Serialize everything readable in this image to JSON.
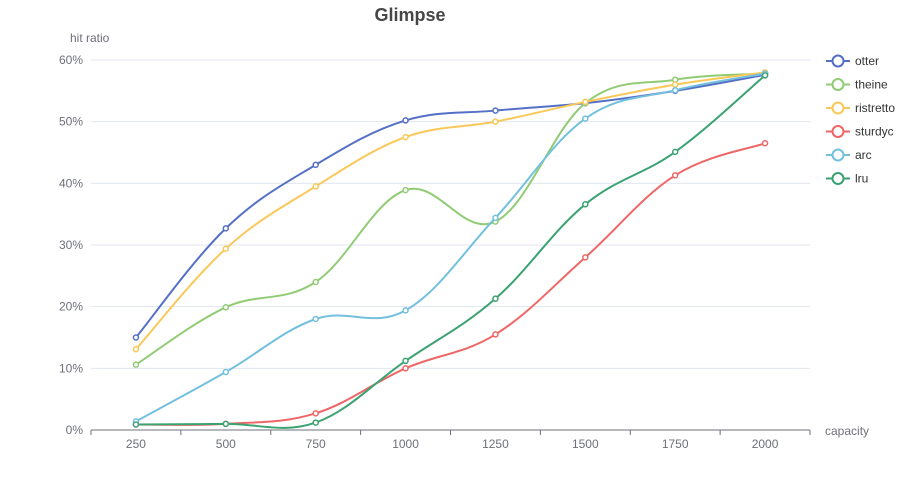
{
  "chart_data": {
    "type": "line",
    "title": "Glimpse",
    "xlabel": "capacity",
    "ylabel": "hit ratio",
    "categories": [
      "250",
      "500",
      "750",
      "1000",
      "1250",
      "1500",
      "1750",
      "2000"
    ],
    "y_ticks": [
      "0%",
      "10%",
      "20%",
      "30%",
      "40%",
      "50%",
      "60%"
    ],
    "ylim": [
      0,
      60
    ],
    "y_unit": "%",
    "grid": true,
    "smooth": true,
    "legend_position": "right",
    "series": [
      {
        "name": "otter",
        "color": "#5470c6",
        "values": [
          15.0,
          32.7,
          43.0,
          50.2,
          51.8,
          53.0,
          55.0,
          57.6
        ]
      },
      {
        "name": "theine",
        "color": "#91cc75",
        "values": [
          10.6,
          19.9,
          24.0,
          38.9,
          33.8,
          53.0,
          56.8,
          57.8
        ]
      },
      {
        "name": "ristretto",
        "color": "#fac858",
        "values": [
          13.1,
          29.4,
          39.5,
          47.5,
          50.0,
          53.2,
          56.0,
          58.0
        ]
      },
      {
        "name": "sturdyc",
        "color": "#ee6666",
        "values": [
          0.9,
          1.0,
          2.7,
          10.0,
          15.5,
          28.0,
          41.3,
          46.5
        ]
      },
      {
        "name": "arc",
        "color": "#73c0de",
        "values": [
          1.4,
          9.4,
          18.0,
          19.4,
          34.4,
          50.5,
          55.1,
          57.8
        ]
      },
      {
        "name": "lru",
        "color": "#3ba272",
        "values": [
          0.9,
          1.0,
          1.2,
          11.2,
          21.3,
          36.6,
          45.1,
          57.5
        ]
      }
    ]
  }
}
